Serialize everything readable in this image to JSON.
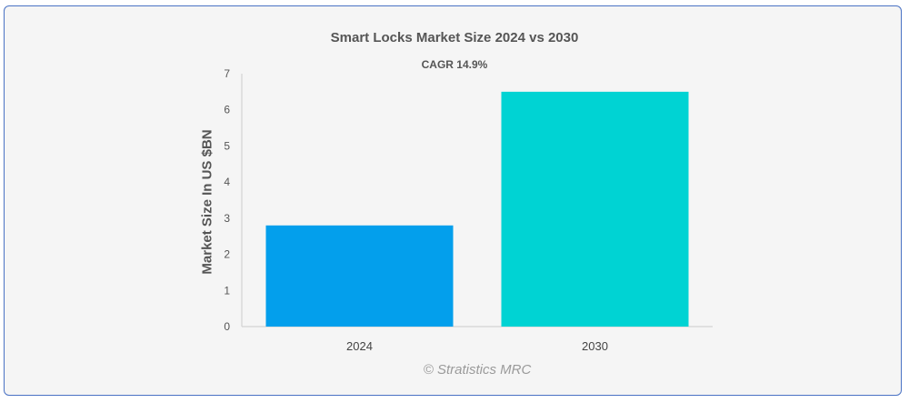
{
  "chart_data": {
    "type": "bar",
    "title": "Smart Locks Market Size 2024 vs 2030",
    "subtitle": "CAGR 14.9%",
    "ylabel": "Market Size In US $BN",
    "xlabel": "",
    "categories": [
      "2024",
      "2030"
    ],
    "values": [
      2.8,
      6.5
    ],
    "colors": [
      "#039fec",
      "#00d3d3"
    ],
    "ylim": [
      0,
      7
    ],
    "yticks": [
      0,
      1,
      2,
      3,
      4,
      5,
      6,
      7
    ],
    "grid": false,
    "legend": "none"
  },
  "watermark": "© Stratistics MRC"
}
